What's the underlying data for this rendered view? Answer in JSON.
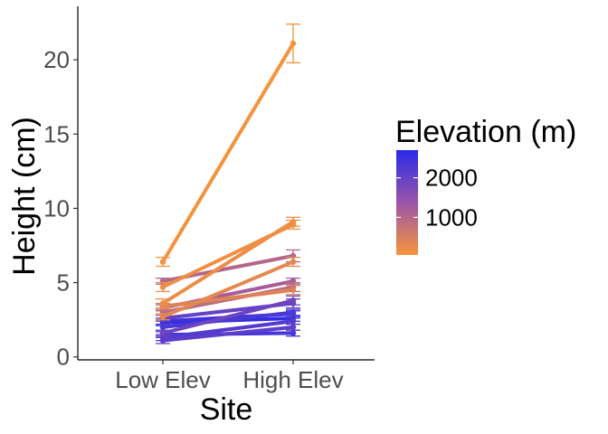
{
  "chart_data": {
    "type": "line",
    "xlabel": "Site",
    "ylabel": "Height (cm)",
    "categories": [
      "Low Elev",
      "High Elev"
    ],
    "ylim": [
      -0.2,
      23.6
    ],
    "yticks": [
      0,
      5,
      10,
      15,
      20
    ],
    "grid": false,
    "legend": {
      "title": "Elevation (m)",
      "placement": "right",
      "type": "colorbar",
      "range": [
        50,
        2700
      ],
      "ticks": [
        1000,
        2000
      ],
      "colors": {
        "low": "#f7943b",
        "high": "#2a2be8"
      }
    },
    "series": [
      {
        "elevation": 80,
        "values": [
          6.4,
          21.1
        ],
        "errors": [
          0.3,
          1.3
        ]
      },
      {
        "elevation": 200,
        "values": [
          3.6,
          9.1
        ],
        "errors": [
          0.3,
          0.3
        ]
      },
      {
        "elevation": 150,
        "values": [
          4.7,
          8.9
        ],
        "errors": [
          0.3,
          0.3
        ]
      },
      {
        "elevation": 1000,
        "values": [
          5.1,
          6.8
        ],
        "errors": [
          0.2,
          0.4
        ]
      },
      {
        "elevation": 300,
        "values": [
          2.7,
          6.4
        ],
        "errors": [
          0.2,
          0.3
        ]
      },
      {
        "elevation": 1200,
        "values": [
          3.3,
          5.1
        ],
        "errors": [
          0.2,
          0.2
        ]
      },
      {
        "elevation": 400,
        "values": [
          3.4,
          4.5
        ],
        "errors": [
          0.2,
          0.3
        ]
      },
      {
        "elevation": 900,
        "values": [
          3.0,
          4.7
        ],
        "errors": [
          0.2,
          0.3
        ]
      },
      {
        "elevation": 1900,
        "values": [
          1.6,
          3.8
        ],
        "errors": [
          0.2,
          0.3
        ]
      },
      {
        "elevation": 2000,
        "values": [
          2.6,
          3.6
        ],
        "errors": [
          0.2,
          0.3
        ]
      },
      {
        "elevation": 2500,
        "values": [
          2.4,
          2.9
        ],
        "errors": [
          0.2,
          0.2
        ]
      },
      {
        "elevation": 2600,
        "values": [
          2.3,
          2.6
        ],
        "errors": [
          0.2,
          0.2
        ]
      },
      {
        "elevation": 2300,
        "values": [
          2.0,
          3.0
        ],
        "errors": [
          0.2,
          0.2
        ]
      },
      {
        "elevation": 2200,
        "values": [
          1.3,
          2.4
        ],
        "errors": [
          0.2,
          0.2
        ]
      },
      {
        "elevation": 2100,
        "values": [
          1.1,
          2.0
        ],
        "errors": [
          0.2,
          0.2
        ]
      },
      {
        "elevation": 2400,
        "values": [
          1.5,
          1.6
        ],
        "errors": [
          0.2,
          0.2
        ]
      }
    ]
  }
}
